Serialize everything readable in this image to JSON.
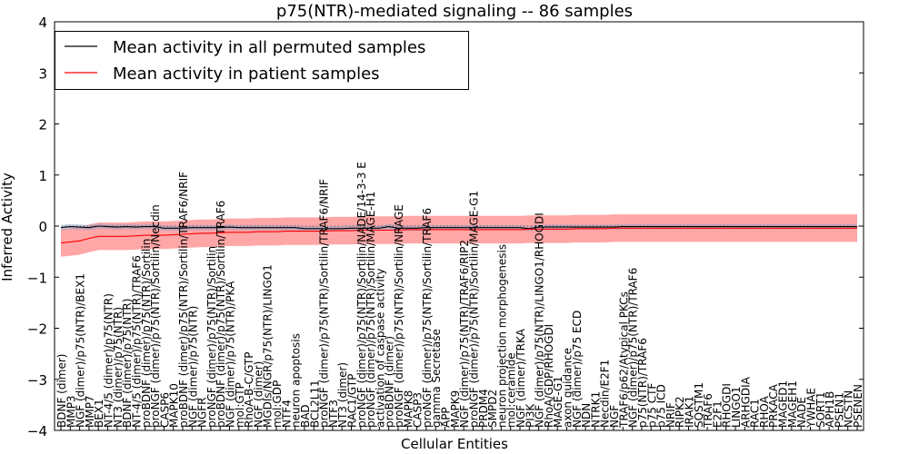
{
  "chart_data": {
    "type": "line",
    "title": "p75(NTR)-mediated signaling -- 86 samples",
    "xlabel": "Cellular Entities",
    "ylabel": "Inferred Activity",
    "ylim": [
      -4,
      4
    ],
    "yticks": [
      "−4",
      "−3",
      "−2",
      "−1",
      "0",
      "1",
      "2",
      "3",
      "4"
    ],
    "ytick_values": [
      -4,
      -3,
      -2,
      -1,
      0,
      1,
      2,
      3,
      4
    ],
    "legend_position": "top-left",
    "colors": {
      "permuted": "#000000",
      "patient": "#ff0000",
      "patient_band": "#ff8080",
      "permuted_band": "#8c9fc9"
    },
    "categories": [
      "BDNF (dimer)",
      "MMP3",
      "NGF (dimer)/p75(NTR)/BEX1",
      "MMP7",
      "BEX1",
      "NT-4/5 (dimer)/p75(NTR)",
      "NT3 (dimer)/p75(NTR)",
      "BDNF (dimer)/p75(NTR)",
      "NT-4/5 (dimer)/p75(NTR)/TRAF6",
      "proBDNF (dimer)/p75(NTR)/Sortilin",
      "proNGF (dimer)/p75(NTR)/Sortilin/Necdin",
      "CASP6",
      "MAPK10",
      "proBDNF (dimer)/p75(NTR)/Sortilin/TRAF6/NRIF",
      "NGF (dimer)/p75(NTR)",
      "NGFR",
      "proNGF (dimer)/p75(NTR)/Sortilin",
      "proBDNF (dimer)/p75(NTR)/Sortilin/TRAF6",
      "NGF (dimer)/p75(NTR)/PKA",
      "mol:GTP",
      "RhoA-B-C/GTP",
      "NGF (dimer)",
      "MGDIs/NGR/p75(NTR)/LINGO1",
      "mol:GDP",
      "NTF4",
      "neuron apoptosis",
      "BAD",
      "BCL2L11",
      "proNGF (dimer)/p75(NTR)/Sortilin/TRAF6/NRIF",
      "NTF3",
      "NT3 (dimer)",
      "RAC1/GTP",
      "proNGF (dimer)/p75(NTR)/Sortilin/NADE/14-3-3 E",
      "proNGF (dimer)/p75(NTR)/Sortilin/MAGE-H1",
      "activation of caspase activity",
      "proBDNF (dimer)",
      "proNGF (dimer)/p75(NTR)/Sortilin/NRAGE",
      "MAPK8",
      "CASP3",
      "proNGF (dimer)/p75(NTR)/Sortilin/TRAF6",
      "gamma Secretase",
      "APP",
      "MAPK9",
      "NGF (dimer)/p75(NTR)/TRAF6/RIP2",
      "proNGF (dimer)/p75(NTR)/Sortilin/MAGE-G1",
      "PRDM4",
      "SMPD2",
      "neuron projection morphogenesis",
      "mol:ceramide",
      "NGF (dimer)/TRKA",
      "PI3K",
      "NGF (dimer)/p75(NTR)/LINGO1/RHOGDI",
      "RhoA/GDP/RHOGDI",
      "MAGE-G1",
      "axon guidance",
      "NGF (dimer)/p75 ECD",
      "NDN",
      "NTRK1",
      "Necdin/E2F1",
      "NGF",
      "TRAF6/p62/Atypical PKCs",
      "NGF (dimer)/p75(NTR)/TRAF6",
      "p75(NTR)/TRAF6",
      "p75 CTF",
      "p75 ICD",
      "NRIF",
      "RIPK2",
      "IRAK1",
      "SQSTM1",
      "TRAF6",
      "E2F1",
      "RHOGDI",
      "LINGO1",
      "ARHGDIA",
      "RAC1",
      "RHOA",
      "PRKACA",
      "MAGED1",
      "MAGEH1",
      "NADE",
      "YWHAE",
      "SORT1",
      "APH1B",
      "PSEN1",
      "NCSTN",
      "PSENEN"
    ],
    "series": [
      {
        "name": "Mean activity in all permuted samples",
        "values": [
          -0.03,
          -0.01,
          -0.02,
          -0.03,
          0.0,
          -0.01,
          -0.02,
          -0.01,
          -0.02,
          -0.01,
          -0.01,
          -0.04,
          -0.04,
          -0.04,
          -0.03,
          -0.03,
          -0.03,
          -0.03,
          -0.02,
          -0.03,
          -0.03,
          -0.03,
          -0.03,
          -0.03,
          -0.03,
          -0.03,
          -0.05,
          -0.05,
          -0.05,
          -0.05,
          -0.05,
          -0.04,
          -0.04,
          -0.04,
          -0.04,
          -0.01,
          -0.04,
          -0.04,
          -0.04,
          -0.03,
          -0.03,
          -0.03,
          -0.03,
          -0.03,
          -0.03,
          -0.03,
          -0.03,
          -0.03,
          -0.03,
          -0.03,
          -0.05,
          -0.02,
          -0.02,
          -0.02,
          -0.02,
          -0.02,
          -0.02,
          -0.02,
          -0.02,
          -0.02,
          -0.01,
          -0.01,
          -0.01,
          -0.01,
          -0.01,
          -0.01,
          -0.01,
          -0.01,
          -0.01,
          -0.01,
          -0.01,
          -0.01,
          -0.01,
          -0.01,
          -0.01,
          -0.01,
          -0.01,
          -0.01,
          -0.01,
          -0.01,
          -0.01,
          -0.01,
          -0.01,
          -0.01,
          -0.01,
          -0.01
        ]
      },
      {
        "name": "Mean activity in patient samples",
        "values": [
          -0.33,
          -0.31,
          -0.29,
          -0.24,
          -0.2,
          -0.2,
          -0.2,
          -0.2,
          -0.19,
          -0.18,
          -0.18,
          -0.18,
          -0.17,
          -0.16,
          -0.15,
          -0.14,
          -0.14,
          -0.13,
          -0.12,
          -0.12,
          -0.12,
          -0.11,
          -0.11,
          -0.11,
          -0.1,
          -0.1,
          -0.1,
          -0.1,
          -0.1,
          -0.09,
          -0.09,
          -0.09,
          -0.08,
          -0.08,
          -0.08,
          -0.08,
          -0.08,
          -0.07,
          -0.07,
          -0.07,
          -0.07,
          -0.07,
          -0.07,
          -0.07,
          -0.07,
          -0.07,
          -0.07,
          -0.07,
          -0.07,
          -0.07,
          -0.06,
          -0.06,
          -0.06,
          -0.06,
          -0.06,
          -0.05,
          -0.05,
          -0.05,
          -0.05,
          -0.04,
          -0.04,
          -0.04,
          -0.04,
          -0.04,
          -0.04,
          -0.04,
          -0.04,
          -0.04,
          -0.04,
          -0.04,
          -0.04,
          -0.04,
          -0.04,
          -0.04,
          -0.04,
          -0.04,
          -0.04,
          -0.04,
          -0.04,
          -0.04,
          -0.04,
          -0.04,
          -0.04,
          -0.04,
          -0.04,
          -0.04
        ]
      }
    ],
    "patient_band_halfwidth": 0.27,
    "permuted_band_halfwidth": 0.05,
    "reference_line": 0
  }
}
